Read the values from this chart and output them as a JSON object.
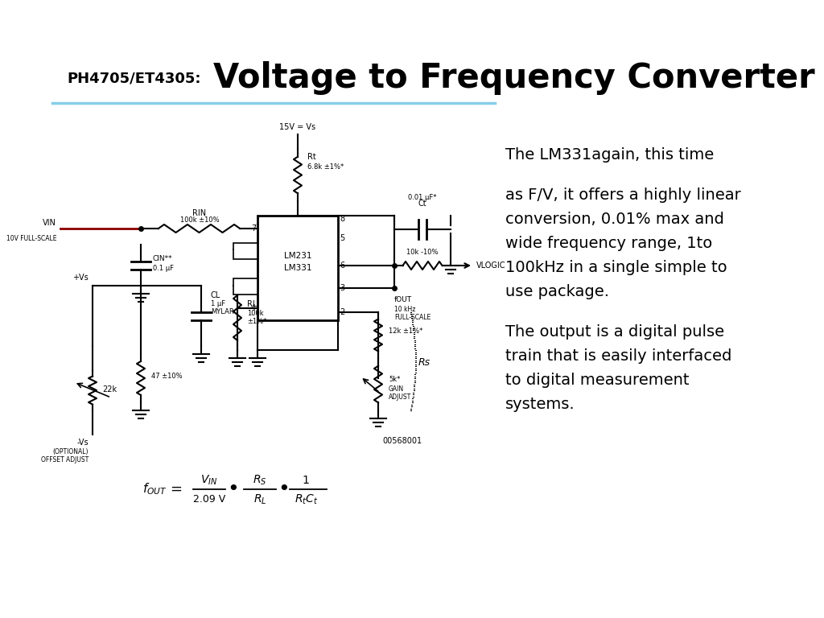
{
  "title_small": "PH4705/ET4305:",
  "title_large": "Voltage to Frequency Converter",
  "divider_color": "#87CEEB",
  "background_color": "#ffffff",
  "text_block1_line1": "The LM331again, this time",
  "text_block1_line2": "as F/V, it offers a highly linear",
  "text_block1_line3": "conversion, 0.01% max and",
  "text_block1_line4": "wide frequency range, 1to",
  "text_block1_line5": "100kHz in a single simple to",
  "text_block1_line6": "use package.",
  "text_block2_line1": "The output is a digital pulse",
  "text_block2_line2": "train that is easily interfaced",
  "text_block2_line3": "to digital measurement",
  "text_block2_line4": "systems."
}
